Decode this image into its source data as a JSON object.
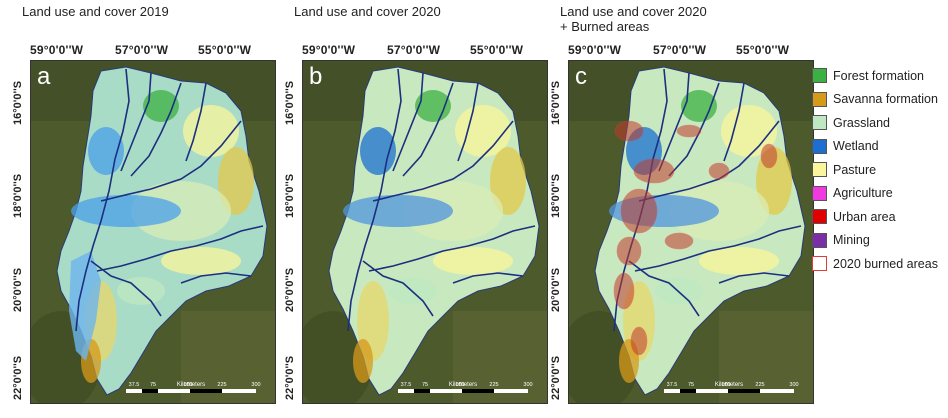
{
  "panels": [
    {
      "title": "Land use and cover 2019",
      "letter": "a",
      "burned": false
    },
    {
      "title": "Land use and cover 2020",
      "letter": "b",
      "burned": false
    },
    {
      "title": "Land use and cover 2020\n+ Burned areas",
      "letter": "c",
      "burned": true
    }
  ],
  "longitude_labels": [
    "59°0'0''W",
    "57°0'0''W",
    "55°0'0''W"
  ],
  "latitude_labels": [
    "16°0'0''S",
    "18°0'0''S",
    "20°0'0''S",
    "22°0'0''S"
  ],
  "scale_bar": {
    "unit": "Kilometers",
    "ticks": [
      "37.5",
      "75",
      "150",
      "225",
      "300"
    ]
  },
  "legend": [
    {
      "label": "Forest formation",
      "color": "#3cb043"
    },
    {
      "label": "Savanna formation",
      "color": "#d59a1a"
    },
    {
      "label": "Grassland",
      "color": "#bfe8c2"
    },
    {
      "label": "Wetland",
      "color": "#1c6fd0"
    },
    {
      "label": "Pasture",
      "color": "#fbf59b"
    },
    {
      "label": "Agriculture",
      "color": "#f03ae0"
    },
    {
      "label": "Urban area",
      "color": "#e00000"
    },
    {
      "label": "Mining",
      "color": "#7b2fa6"
    },
    {
      "label": "2020 burned areas",
      "color": "#e53935",
      "outline": true
    }
  ]
}
